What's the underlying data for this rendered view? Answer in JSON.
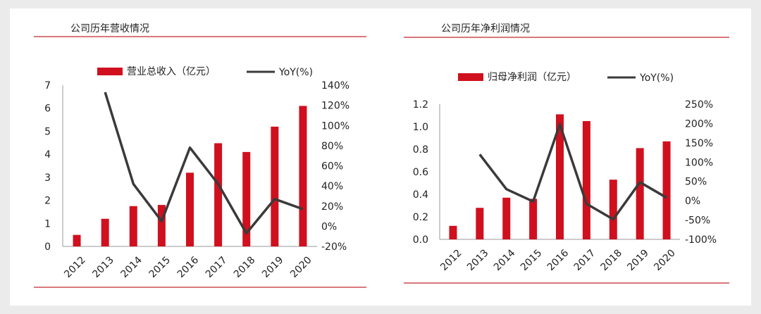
{
  "colors": {
    "bar": "#d0101e",
    "line": "#3a3a3a",
    "rule": "#c0282e",
    "text": "#222222"
  },
  "chart_data": [
    {
      "type": "bar",
      "title": "公司历年营收情况",
      "categories": [
        "2012",
        "2013",
        "2014",
        "2015",
        "2016",
        "2017",
        "2018",
        "2019",
        "2020"
      ],
      "series": [
        {
          "name": "营业总收入（亿元）",
          "kind": "bar",
          "axis": "left",
          "values": [
            0.5,
            1.2,
            1.75,
            1.8,
            3.2,
            4.48,
            4.1,
            5.2,
            6.1
          ]
        },
        {
          "name": "YoY(%)",
          "kind": "line",
          "axis": "right",
          "values": [
            null,
            133,
            42,
            5,
            78,
            42,
            -7,
            27,
            17
          ]
        }
      ],
      "y_left": {
        "min": 0,
        "max": 7,
        "ticks": [
          "0",
          "1",
          "2",
          "3",
          "4",
          "5",
          "6",
          "7"
        ]
      },
      "y_right": {
        "min": -20,
        "max": 140,
        "ticks": [
          "-20%",
          "0%",
          "20%",
          "40%",
          "60%",
          "80%",
          "100%",
          "120%",
          "140%"
        ]
      }
    },
    {
      "type": "bar",
      "title": "公司历年净利润情况",
      "categories": [
        "2012",
        "2013",
        "2014",
        "2015",
        "2016",
        "2017",
        "2018",
        "2019",
        "2020"
      ],
      "series": [
        {
          "name": "归母净利润（亿元）",
          "kind": "bar",
          "axis": "left",
          "values": [
            0.12,
            0.28,
            0.37,
            0.36,
            1.11,
            1.05,
            0.53,
            0.81,
            0.87
          ]
        },
        {
          "name": "YoY(%)",
          "kind": "line",
          "axis": "right",
          "values": [
            null,
            120,
            30,
            -2,
            198,
            -8,
            -48,
            48,
            8
          ]
        }
      ],
      "y_left": {
        "min": 0,
        "max": 1.2,
        "ticks": [
          "0.0",
          "0.2",
          "0.4",
          "0.6",
          "0.8",
          "1.0",
          "1.2"
        ]
      },
      "y_right": {
        "min": -100,
        "max": 250,
        "ticks": [
          "-100%",
          "-50%",
          "0%",
          "50%",
          "100%",
          "150%",
          "200%",
          "250%"
        ]
      }
    }
  ]
}
